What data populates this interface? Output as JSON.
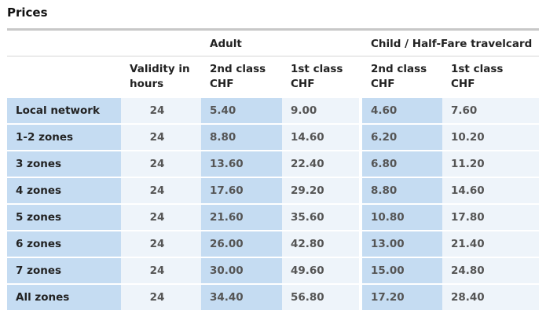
{
  "title": "Prices",
  "groups": {
    "adult": "Adult",
    "child": "Child / Half-Fare travelcard"
  },
  "columns": {
    "validity_line1": "Validity in",
    "validity_line2": "hours",
    "second_line1": "2nd class",
    "first_line1": "1st class",
    "currency": "CHF"
  },
  "rows": [
    {
      "label": "Local network",
      "validity": "24",
      "adult_2nd": "5.40",
      "adult_1st": "9.00",
      "child_2nd": "4.60",
      "child_1st": "7.60"
    },
    {
      "label": "1-2 zones",
      "validity": "24",
      "adult_2nd": "8.80",
      "adult_1st": "14.60",
      "child_2nd": "6.20",
      "child_1st": "10.20"
    },
    {
      "label": "3 zones",
      "validity": "24",
      "adult_2nd": "13.60",
      "adult_1st": "22.40",
      "child_2nd": "6.80",
      "child_1st": "11.20"
    },
    {
      "label": "4 zones",
      "validity": "24",
      "adult_2nd": "17.60",
      "adult_1st": "29.20",
      "child_2nd": "8.80",
      "child_1st": "14.60"
    },
    {
      "label": "5 zones",
      "validity": "24",
      "adult_2nd": "21.60",
      "adult_1st": "35.60",
      "child_2nd": "10.80",
      "child_1st": "17.80"
    },
    {
      "label": "6 zones",
      "validity": "24",
      "adult_2nd": "26.00",
      "adult_1st": "42.80",
      "child_2nd": "13.00",
      "child_1st": "21.40"
    },
    {
      "label": "7 zones",
      "validity": "24",
      "adult_2nd": "30.00",
      "adult_1st": "49.60",
      "child_2nd": "15.00",
      "child_1st": "24.80"
    },
    {
      "label": "All zones",
      "validity": "24",
      "adult_2nd": "34.40",
      "adult_1st": "56.80",
      "child_2nd": "17.20",
      "child_1st": "28.40"
    }
  ]
}
